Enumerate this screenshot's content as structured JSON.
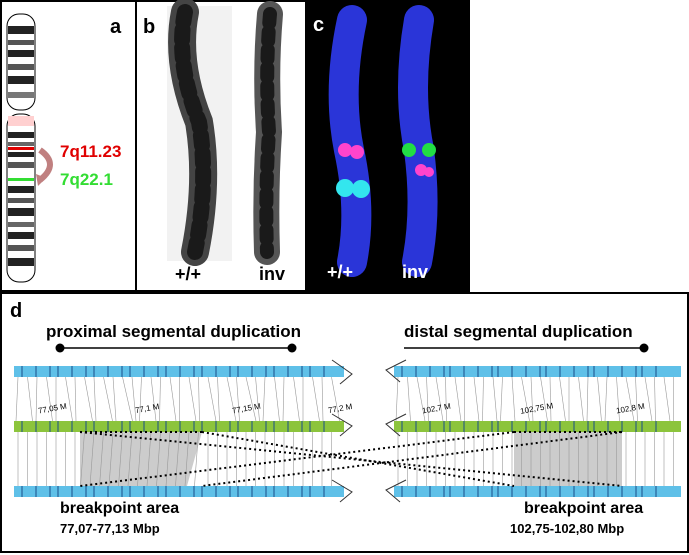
{
  "panel_a": {
    "label": "a",
    "band_top": "7q11.23",
    "band_bottom": "7q22.1",
    "color_top": "#e00000",
    "color_bottom": "#33dd33",
    "arrow_color": "#c08080"
  },
  "panel_b": {
    "label": "b",
    "left_caption": "+/+",
    "right_caption": "inv"
  },
  "panel_c": {
    "label": "c",
    "left_caption": "+/+",
    "right_caption": "inv",
    "chrom_color": "#2a35d8",
    "magenta": "#ff44cc",
    "cyan": "#33e6ee",
    "green": "#22dd44"
  },
  "panel_d": {
    "label": "d",
    "left_title": "proximal segmental duplication",
    "right_title": "distal segmental duplication",
    "left_ticks": [
      "77,05 M",
      "77,1 M",
      "77,15 M",
      "77,2 M"
    ],
    "right_ticks": [
      "102,7 M",
      "102,75 M",
      "102,8 M"
    ],
    "left_breakpoint_title": "breakpoint area",
    "left_breakpoint_range": "77,07-77,13 Mbp",
    "right_breakpoint_title": "breakpoint area",
    "right_breakpoint_range": "102,75-102,80 Mbp",
    "track_blue": "#5fc0e8",
    "track_green": "#8cc43c"
  }
}
